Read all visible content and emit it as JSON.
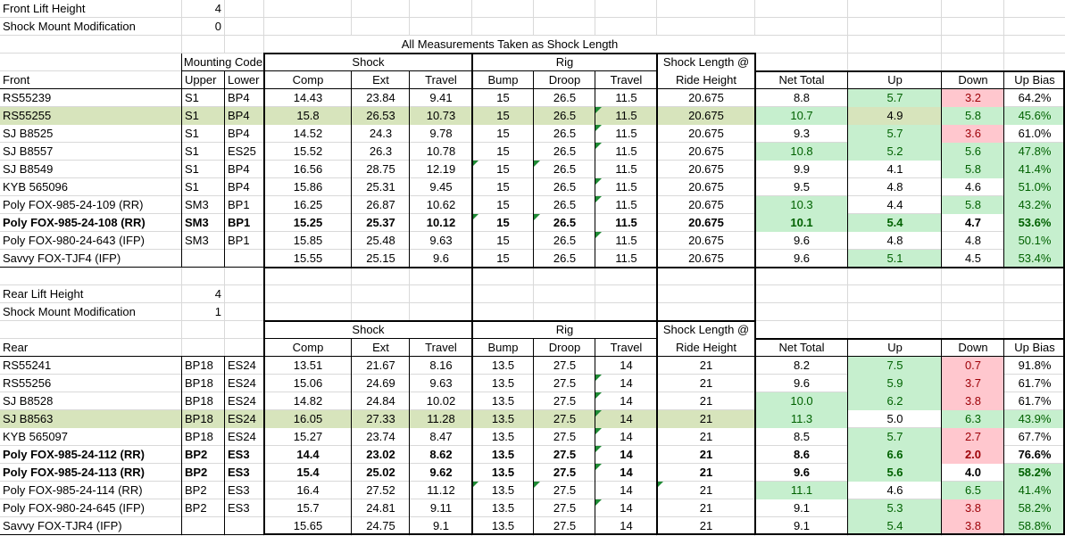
{
  "title": "All Measurements Taken as Shock Length",
  "colors": {
    "conditional_green_bg": "#C6EFCE",
    "conditional_green_text": "#006100",
    "conditional_red_bg": "#FFC7CE",
    "conditional_red_text": "#9C0006",
    "row_highlight_bg": "#D7E4BC",
    "flag_triangle_green": "#1E8A34",
    "gridline": "#D9D9D9"
  },
  "front": {
    "info": [
      {
        "label": "Front Lift Height",
        "value": "4"
      },
      {
        "label": "Shock Mount Modification",
        "value": "0"
      }
    ],
    "section_label": "Front",
    "groups": {
      "mounting": "Mounting Code",
      "shock": "Shock",
      "rig": "Rig",
      "sl1": "Shock Length @",
      "sl2": "Ride Height"
    },
    "headers": {
      "upper": "Upper",
      "lower": "Lower",
      "comp": "Comp",
      "ext": "Ext",
      "travel": "Travel",
      "bump": "Bump",
      "droop": "Droop",
      "rig_travel": "Travel",
      "net": "Net Total",
      "up": "Up",
      "down": "Down",
      "bias": "Up Bias"
    },
    "rows": [
      {
        "name": "RS55239",
        "upper": "S1",
        "lower": "BP4",
        "comp": "14.43",
        "ext": "23.84",
        "travel": "9.41",
        "bump": "15",
        "droop": "26.5",
        "rig_travel": "11.5",
        "ride_height": "20.675",
        "net": "8.8",
        "up": "5.7",
        "down": "3.2",
        "bias": "64.2%",
        "bold": false,
        "highlight": false,
        "highlight_up": false,
        "cond": {
          "net": "",
          "up": "g",
          "down": "r",
          "bias": ""
        },
        "flags": []
      },
      {
        "name": "RS55255",
        "upper": "S1",
        "lower": "BP4",
        "comp": "15.8",
        "ext": "26.53",
        "travel": "10.73",
        "bump": "15",
        "droop": "26.5",
        "rig_travel": "11.5",
        "ride_height": "20.675",
        "net": "10.7",
        "up": "4.9",
        "down": "5.8",
        "bias": "45.6%",
        "bold": false,
        "highlight": true,
        "highlight_up": true,
        "cond": {
          "net": "g",
          "up": "",
          "down": "g",
          "bias": "g"
        },
        "flags": [
          "rig_travel"
        ]
      },
      {
        "name": "SJ B8525",
        "upper": "S1",
        "lower": "BP4",
        "comp": "14.52",
        "ext": "24.3",
        "travel": "9.78",
        "bump": "15",
        "droop": "26.5",
        "rig_travel": "11.5",
        "ride_height": "20.675",
        "net": "9.3",
        "up": "5.7",
        "down": "3.6",
        "bias": "61.0%",
        "bold": false,
        "highlight": false,
        "highlight_up": false,
        "cond": {
          "net": "",
          "up": "g",
          "down": "r",
          "bias": ""
        },
        "flags": [
          "rig_travel"
        ]
      },
      {
        "name": "SJ B8557",
        "upper": "S1",
        "lower": "ES25",
        "comp": "15.52",
        "ext": "26.3",
        "travel": "10.78",
        "bump": "15",
        "droop": "26.5",
        "rig_travel": "11.5",
        "ride_height": "20.675",
        "net": "10.8",
        "up": "5.2",
        "down": "5.6",
        "bias": "47.8%",
        "bold": false,
        "highlight": false,
        "highlight_up": false,
        "cond": {
          "net": "g",
          "up": "g",
          "down": "g",
          "bias": "g"
        },
        "flags": [
          "rig_travel"
        ]
      },
      {
        "name": "SJ B8549",
        "upper": "S1",
        "lower": "BP4",
        "comp": "16.56",
        "ext": "28.75",
        "travel": "12.19",
        "bump": "15",
        "droop": "26.5",
        "rig_travel": "11.5",
        "ride_height": "20.675",
        "net": "9.9",
        "up": "4.1",
        "down": "5.8",
        "bias": "41.4%",
        "bold": false,
        "highlight": false,
        "highlight_up": false,
        "cond": {
          "net": "",
          "up": "",
          "down": "g",
          "bias": "g"
        },
        "flags": [
          "bump",
          "droop"
        ]
      },
      {
        "name": "KYB 565096",
        "upper": "S1",
        "lower": "BP4",
        "comp": "15.86",
        "ext": "25.31",
        "travel": "9.45",
        "bump": "15",
        "droop": "26.5",
        "rig_travel": "11.5",
        "ride_height": "20.675",
        "net": "9.5",
        "up": "4.8",
        "down": "4.6",
        "bias": "51.0%",
        "bold": false,
        "highlight": false,
        "highlight_up": false,
        "cond": {
          "net": "",
          "up": "",
          "down": "",
          "bias": "g"
        },
        "flags": [
          "rig_travel"
        ]
      },
      {
        "name": "Poly FOX-985-24-109 (RR)",
        "upper": "SM3",
        "lower": "BP1",
        "comp": "16.25",
        "ext": "26.87",
        "travel": "10.62",
        "bump": "15",
        "droop": "26.5",
        "rig_travel": "11.5",
        "ride_height": "20.675",
        "net": "10.3",
        "up": "4.4",
        "down": "5.8",
        "bias": "43.2%",
        "bold": false,
        "highlight": false,
        "highlight_up": false,
        "cond": {
          "net": "g",
          "up": "",
          "down": "g",
          "bias": "g"
        },
        "flags": [
          "rig_travel"
        ]
      },
      {
        "name": "Poly FOX-985-24-108 (RR)",
        "upper": "SM3",
        "lower": "BP1",
        "comp": "15.25",
        "ext": "25.37",
        "travel": "10.12",
        "bump": "15",
        "droop": "26.5",
        "rig_travel": "11.5",
        "ride_height": "20.675",
        "net": "10.1",
        "up": "5.4",
        "down": "4.7",
        "bias": "53.6%",
        "bold": true,
        "highlight": false,
        "highlight_up": false,
        "cond": {
          "net": "g",
          "up": "g",
          "down": "",
          "bias": "g"
        },
        "flags": [
          "bump",
          "droop"
        ]
      },
      {
        "name": "Poly FOX-980-24-643 (IFP)",
        "upper": "SM3",
        "lower": "BP1",
        "comp": "15.85",
        "ext": "25.48",
        "travel": "9.63",
        "bump": "15",
        "droop": "26.5",
        "rig_travel": "11.5",
        "ride_height": "20.675",
        "net": "9.6",
        "up": "4.8",
        "down": "4.8",
        "bias": "50.1%",
        "bold": false,
        "highlight": false,
        "highlight_up": false,
        "cond": {
          "net": "",
          "up": "",
          "down": "",
          "bias": "g"
        },
        "flags": [
          "rig_travel"
        ]
      },
      {
        "name": "Savvy FOX-TJF4 (IFP)",
        "upper": "",
        "lower": "",
        "comp": "15.55",
        "ext": "25.15",
        "travel": "9.6",
        "bump": "15",
        "droop": "26.5",
        "rig_travel": "11.5",
        "ride_height": "20.675",
        "net": "9.6",
        "up": "5.1",
        "down": "4.5",
        "bias": "53.4%",
        "bold": false,
        "highlight": false,
        "highlight_up": false,
        "cond": {
          "net": "",
          "up": "g",
          "down": "",
          "bias": "g"
        },
        "flags": []
      }
    ]
  },
  "rear": {
    "info": [
      {
        "label": "Rear Lift Height",
        "value": "4"
      },
      {
        "label": "Shock Mount Modification",
        "value": "1"
      }
    ],
    "section_label": "Rear",
    "groups": {
      "shock": "Shock",
      "rig": "Rig",
      "sl1": "Shock Length @",
      "sl2": "Ride Height"
    },
    "headers": {
      "comp": "Comp",
      "ext": "Ext",
      "travel": "Travel",
      "bump": "Bump",
      "droop": "Droop",
      "rig_travel": "Travel",
      "net": "Net Total",
      "up": "Up",
      "down": "Down",
      "bias": "Up Bias"
    },
    "rows": [
      {
        "name": "RS55241",
        "upper": "BP18",
        "lower": "ES24",
        "comp": "13.51",
        "ext": "21.67",
        "travel": "8.16",
        "bump": "13.5",
        "droop": "27.5",
        "rig_travel": "14",
        "ride_height": "21",
        "net": "8.2",
        "up": "7.5",
        "down": "0.7",
        "bias": "91.8%",
        "bold": false,
        "highlight": false,
        "highlight_up": false,
        "cond": {
          "net": "",
          "up": "g",
          "down": "r",
          "bias": ""
        },
        "flags": []
      },
      {
        "name": "RS55256",
        "upper": "BP18",
        "lower": "ES24",
        "comp": "15.06",
        "ext": "24.69",
        "travel": "9.63",
        "bump": "13.5",
        "droop": "27.5",
        "rig_travel": "14",
        "ride_height": "21",
        "net": "9.6",
        "up": "5.9",
        "down": "3.7",
        "bias": "61.7%",
        "bold": false,
        "highlight": false,
        "highlight_up": false,
        "cond": {
          "net": "",
          "up": "g",
          "down": "r",
          "bias": ""
        },
        "flags": [
          "rig_travel"
        ]
      },
      {
        "name": "SJ B8528",
        "upper": "BP18",
        "lower": "ES24",
        "comp": "14.82",
        "ext": "24.84",
        "travel": "10.02",
        "bump": "13.5",
        "droop": "27.5",
        "rig_travel": "14",
        "ride_height": "21",
        "net": "10.0",
        "up": "6.2",
        "down": "3.8",
        "bias": "61.7%",
        "bold": false,
        "highlight": false,
        "highlight_up": false,
        "cond": {
          "net": "g",
          "up": "g",
          "down": "r",
          "bias": ""
        },
        "flags": [
          "rig_travel"
        ]
      },
      {
        "name": "SJ B8563",
        "upper": "BP18",
        "lower": "ES24",
        "comp": "16.05",
        "ext": "27.33",
        "travel": "11.28",
        "bump": "13.5",
        "droop": "27.5",
        "rig_travel": "14",
        "ride_height": "21",
        "net": "11.3",
        "up": "5.0",
        "down": "6.3",
        "bias": "43.9%",
        "bold": false,
        "highlight": true,
        "highlight_up": false,
        "cond": {
          "net": "g",
          "up": "",
          "down": "g",
          "bias": "g"
        },
        "flags": [
          "rig_travel"
        ]
      },
      {
        "name": "KYB 565097",
        "upper": "BP18",
        "lower": "ES24",
        "comp": "15.27",
        "ext": "23.74",
        "travel": "8.47",
        "bump": "13.5",
        "droop": "27.5",
        "rig_travel": "14",
        "ride_height": "21",
        "net": "8.5",
        "up": "5.7",
        "down": "2.7",
        "bias": "67.7%",
        "bold": false,
        "highlight": false,
        "highlight_up": false,
        "cond": {
          "net": "",
          "up": "g",
          "down": "r",
          "bias": ""
        },
        "flags": [
          "rig_travel"
        ]
      },
      {
        "name": "Poly FOX-985-24-112 (RR)",
        "upper": "BP2",
        "lower": "ES3",
        "comp": "14.4",
        "ext": "23.02",
        "travel": "8.62",
        "bump": "13.5",
        "droop": "27.5",
        "rig_travel": "14",
        "ride_height": "21",
        "net": "8.6",
        "up": "6.6",
        "down": "2.0",
        "bias": "76.6%",
        "bold": true,
        "highlight": false,
        "highlight_up": false,
        "cond": {
          "net": "",
          "up": "g",
          "down": "r",
          "bias": ""
        },
        "flags": [
          "rig_travel"
        ]
      },
      {
        "name": "Poly FOX-985-24-113 (RR)",
        "upper": "BP2",
        "lower": "ES3",
        "comp": "15.4",
        "ext": "25.02",
        "travel": "9.62",
        "bump": "13.5",
        "droop": "27.5",
        "rig_travel": "14",
        "ride_height": "21",
        "net": "9.6",
        "up": "5.6",
        "down": "4.0",
        "bias": "58.2%",
        "bold": true,
        "highlight": false,
        "highlight_up": false,
        "cond": {
          "net": "",
          "up": "g",
          "down": "",
          "bias": "g"
        },
        "flags": [
          "rig_travel"
        ]
      },
      {
        "name": "Poly FOX-985-24-114 (RR)",
        "upper": "BP2",
        "lower": "ES3",
        "comp": "16.4",
        "ext": "27.52",
        "travel": "11.12",
        "bump": "13.5",
        "droop": "27.5",
        "rig_travel": "14",
        "ride_height": "21",
        "net": "11.1",
        "up": "4.6",
        "down": "6.5",
        "bias": "41.4%",
        "bold": false,
        "highlight": false,
        "highlight_up": false,
        "cond": {
          "net": "g",
          "up": "",
          "down": "g",
          "bias": "g"
        },
        "flags": [
          "bump",
          "droop",
          "ride_height"
        ]
      },
      {
        "name": "Poly FOX-980-24-645 (IFP)",
        "upper": "BP2",
        "lower": "ES3",
        "comp": "15.7",
        "ext": "24.81",
        "travel": "9.11",
        "bump": "13.5",
        "droop": "27.5",
        "rig_travel": "14",
        "ride_height": "21",
        "net": "9.1",
        "up": "5.3",
        "down": "3.8",
        "bias": "58.2%",
        "bold": false,
        "highlight": false,
        "highlight_up": false,
        "cond": {
          "net": "",
          "up": "g",
          "down": "r",
          "bias": "g"
        },
        "flags": [
          "rig_travel"
        ]
      },
      {
        "name": "Savvy FOX-TJR4 (IFP)",
        "upper": "",
        "lower": "",
        "comp": "15.65",
        "ext": "24.75",
        "travel": "9.1",
        "bump": "13.5",
        "droop": "27.5",
        "rig_travel": "14",
        "ride_height": "21",
        "net": "9.1",
        "up": "5.4",
        "down": "3.8",
        "bias": "58.8%",
        "bold": false,
        "highlight": false,
        "highlight_up": false,
        "cond": {
          "net": "",
          "up": "g",
          "down": "r",
          "bias": "g"
        },
        "flags": []
      }
    ]
  }
}
